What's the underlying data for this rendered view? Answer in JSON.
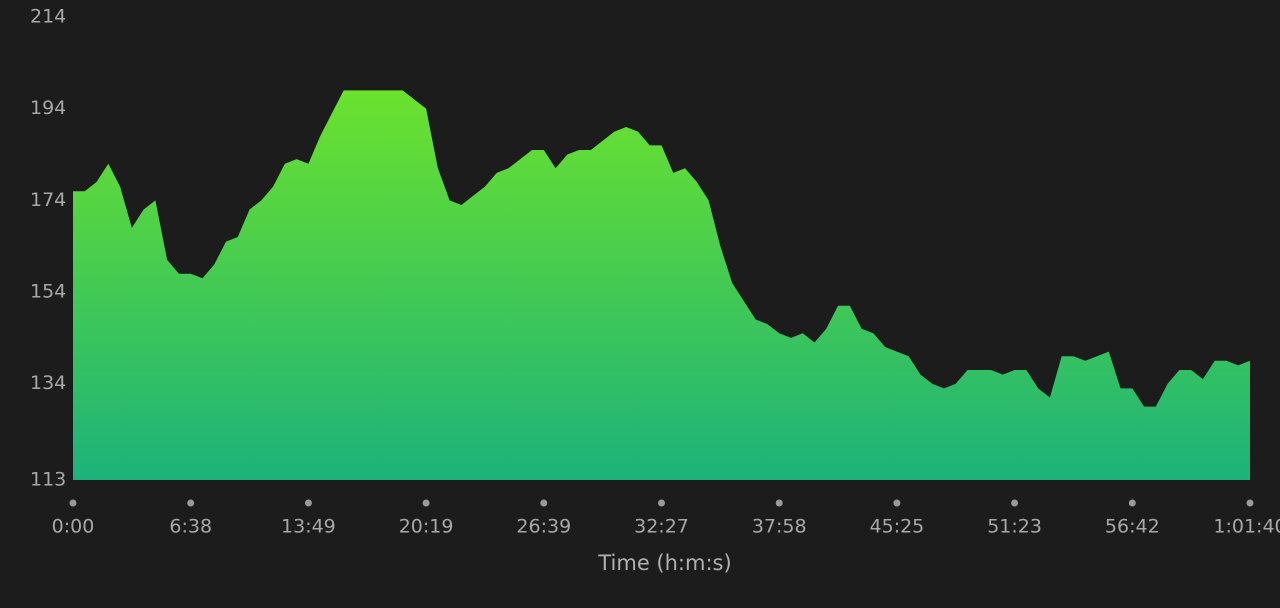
{
  "chart_data": {
    "type": "area",
    "x_label": "Time (h:m:s)",
    "values": [
      176,
      176,
      178,
      182,
      177,
      168,
      172,
      174,
      161,
      158,
      158,
      157,
      160,
      165,
      166,
      172,
      174,
      177,
      182,
      183,
      182,
      188,
      193,
      198,
      198,
      198,
      198,
      198,
      198,
      196,
      194,
      181,
      174,
      173,
      175,
      177,
      180,
      181,
      183,
      185,
      185,
      181,
      184,
      185,
      185,
      187,
      189,
      190,
      189,
      186,
      186,
      180,
      181,
      178,
      174,
      164,
      156,
      152,
      148,
      147,
      145,
      144,
      145,
      143,
      146,
      151,
      151,
      146,
      145,
      142,
      141,
      140,
      136,
      134,
      133,
      134,
      137,
      137,
      137,
      136,
      137,
      137,
      133,
      131,
      140,
      140,
      139,
      140,
      141,
      133,
      133,
      129,
      129,
      134,
      137,
      137,
      135,
      139,
      139,
      138,
      139
    ],
    "gradient": [
      "#6be22d",
      "#1cb27a"
    ],
    "xlim": [
      0,
      100
    ],
    "xticks": [
      {
        "value": 0,
        "label": "0:00"
      },
      {
        "value": 10,
        "label": "6:38"
      },
      {
        "value": 20,
        "label": "13:49"
      },
      {
        "value": 30,
        "label": "20:19"
      },
      {
        "value": 40,
        "label": "26:39"
      },
      {
        "value": 50,
        "label": "32:27"
      },
      {
        "value": 60,
        "label": "37:58"
      },
      {
        "value": 70,
        "label": "45:25"
      },
      {
        "value": 80,
        "label": "51:23"
      },
      {
        "value": 90,
        "label": "56:42"
      },
      {
        "value": 100,
        "label": "1:01:40"
      }
    ],
    "ylim": [
      113,
      214
    ],
    "yticks": [
      113,
      134,
      154,
      174,
      194,
      214
    ]
  }
}
